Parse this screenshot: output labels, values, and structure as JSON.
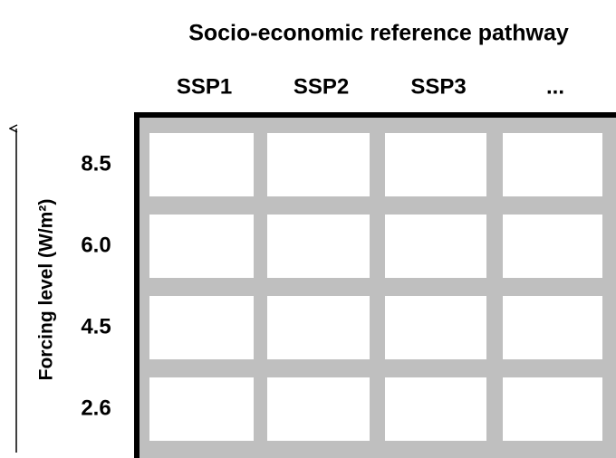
{
  "title": "Socio-economic reference pathway",
  "columns": [
    "SSP1",
    "SSP2",
    "SSP3",
    "..."
  ],
  "rows": [
    "8.5",
    "6.0",
    "4.5",
    "2.6"
  ],
  "y_axis_label": "Forcing level (W/m²)"
}
